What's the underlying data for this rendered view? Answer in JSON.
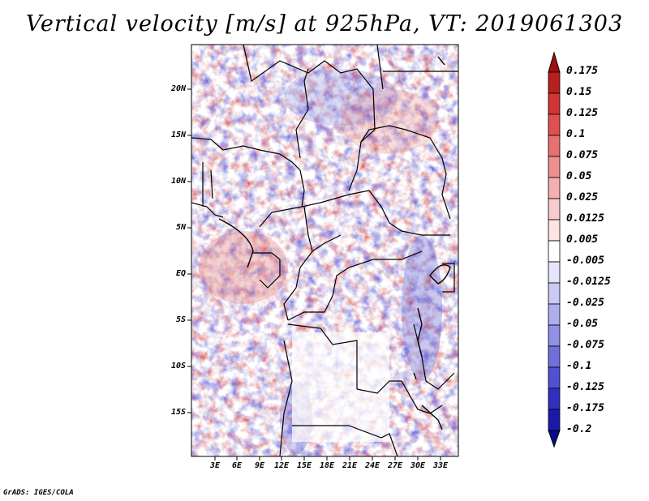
{
  "title": "Vertical velocity [m/s] at 925hPa, VT: 2019061303",
  "credit": "GrADS: IGES/COLA",
  "lat_ticks": [
    "20N",
    "15N",
    "10N",
    "5N",
    "EQ",
    "5S",
    "10S",
    "15S"
  ],
  "lon_ticks": [
    "3E",
    "6E",
    "9E",
    "12E",
    "15E",
    "18E",
    "21E",
    "24E",
    "27E",
    "30E",
    "33E"
  ],
  "colorbar": {
    "levels": [
      "0.175",
      "0.15",
      "0.125",
      "0.1",
      "0.075",
      "0.05",
      "0.025",
      "0.0125",
      "0.005",
      "-0.005",
      "-0.0125",
      "-0.025",
      "-0.05",
      "-0.075",
      "-0.1",
      "-0.125",
      "-0.175",
      "-0.2"
    ],
    "colors": [
      "#a01010",
      "#b82020",
      "#d23535",
      "#e05050",
      "#e87070",
      "#ef9090",
      "#f4b0b0",
      "#f8cccc",
      "#fce4e4",
      "#ffffff",
      "#e4e4fc",
      "#cacaf6",
      "#aeaeef",
      "#9090e6",
      "#7070dc",
      "#5050d0",
      "#3030c0",
      "#1a1aa8",
      "#0a0a8c"
    ]
  }
}
